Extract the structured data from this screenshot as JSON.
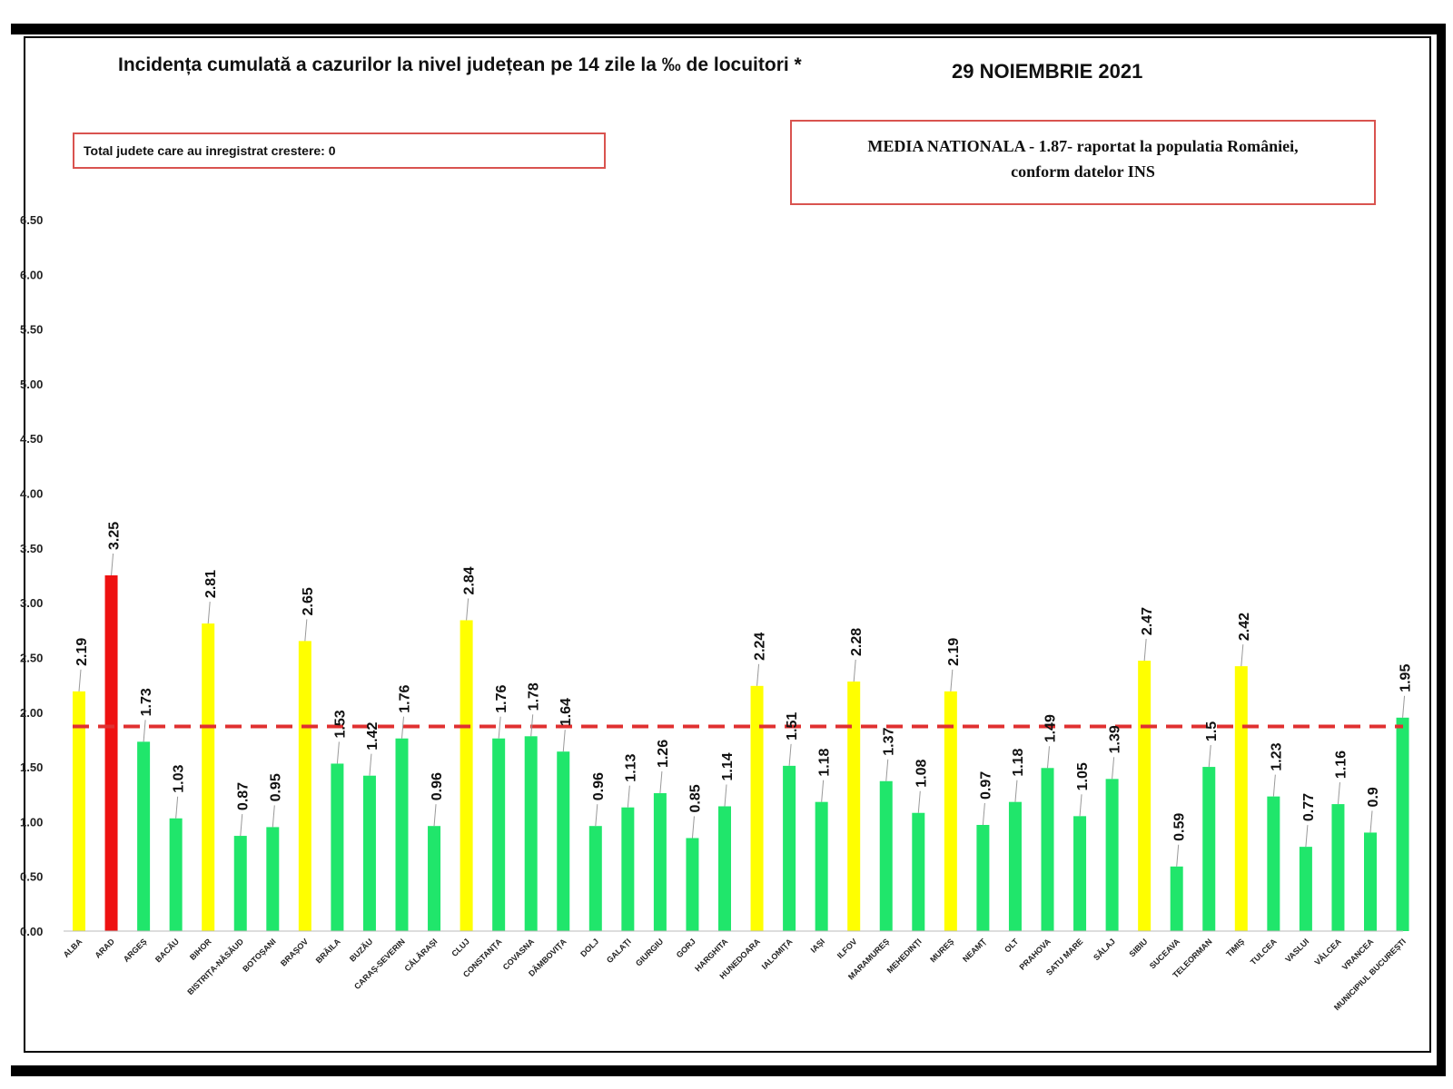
{
  "header": {
    "title": "Incidența cumulată a cazurilor la nivel județean pe 14 zile la ‰ de locuitori *",
    "date": "29 NOIEMBRIE 2021"
  },
  "total_box": {
    "text": "Total judete care au inregistrat crestere: 0"
  },
  "media_box": {
    "line1": "MEDIA NATIONALA - 1.87-  raportat la populatia României,",
    "line2": "conform datelor INS"
  },
  "colors": {
    "green": "#20e66b",
    "yellow": "#ffff00",
    "red": "#ee1111",
    "average_line": "#e03030"
  },
  "chart_data": {
    "type": "bar",
    "title": "Incidența cumulată a cazurilor la nivel județean pe 14 zile la ‰ de locuitori *",
    "ylim": [
      0,
      6.5
    ],
    "yticks": [
      "0.00",
      "0.50",
      "1.00",
      "1.50",
      "2.00",
      "2.50",
      "3.00",
      "3.50",
      "4.00",
      "4.50",
      "5.00",
      "5.50",
      "6.00",
      "6.50"
    ],
    "average": 1.87,
    "categories": [
      "ALBA",
      "ARAD",
      "ARGEȘ",
      "BACĂU",
      "BIHOR",
      "BISTRIȚA-NĂSĂUD",
      "BOTOȘANI",
      "BRAȘOV",
      "BRĂILA",
      "BUZĂU",
      "CARAȘ-SEVERIN",
      "CĂLĂRAȘI",
      "CLUJ",
      "CONSTANȚA",
      "COVASNA",
      "DÂMBOVIȚA",
      "DOLJ",
      "GALAȚI",
      "GIURGIU",
      "GORJ",
      "HARGHITA",
      "HUNEDOARA",
      "IALOMIȚA",
      "IAȘI",
      "ILFOV",
      "MARAMUREȘ",
      "MEHEDINȚI",
      "MUREȘ",
      "NEAMȚ",
      "OLT",
      "PRAHOVA",
      "SATU MARE",
      "SĂLAJ",
      "SIBIU",
      "SUCEAVA",
      "TELEORMAN",
      "TIMIȘ",
      "TULCEA",
      "VASLUI",
      "VÂLCEA",
      "VRANCEA",
      "MUNICIPIUL BUCUREȘTI"
    ],
    "values": [
      2.19,
      3.25,
      1.73,
      1.03,
      2.81,
      0.87,
      0.95,
      2.65,
      1.53,
      1.42,
      1.76,
      0.96,
      2.84,
      1.76,
      1.78,
      1.64,
      0.96,
      1.13,
      1.26,
      0.85,
      1.14,
      2.24,
      1.51,
      1.18,
      2.28,
      1.37,
      1.08,
      2.19,
      0.97,
      1.18,
      1.49,
      1.05,
      1.39,
      2.47,
      0.59,
      1.5,
      2.42,
      1.23,
      0.77,
      1.16,
      0.9,
      1.95
    ],
    "labels": [
      "2.19",
      "3.25",
      "1.73",
      "1.03",
      "2.81",
      "0.87",
      "0.95",
      "2.65",
      "1.53",
      "1.42",
      "1.76",
      "0.96",
      "2.84",
      "1.76",
      "1.78",
      "1.64",
      "0.96",
      "1.13",
      "1.26",
      "0.85",
      "1.14",
      "2.24",
      "1.51",
      "1.18",
      "2.28",
      "1.37",
      "1.08",
      "2.19",
      "0.97",
      "1.18",
      "1.49",
      "1.05",
      "1.39",
      "2.47",
      "0.59",
      "1.5",
      "2.42",
      "1.23",
      "0.77",
      "1.16",
      "0.9",
      "1.95"
    ],
    "colors": [
      "yellow",
      "red",
      "green",
      "green",
      "yellow",
      "green",
      "green",
      "yellow",
      "green",
      "green",
      "green",
      "green",
      "yellow",
      "green",
      "green",
      "green",
      "green",
      "green",
      "green",
      "green",
      "green",
      "yellow",
      "green",
      "green",
      "yellow",
      "green",
      "green",
      "yellow",
      "green",
      "green",
      "green",
      "green",
      "green",
      "yellow",
      "green",
      "green",
      "yellow",
      "green",
      "green",
      "green",
      "green",
      "green"
    ]
  }
}
